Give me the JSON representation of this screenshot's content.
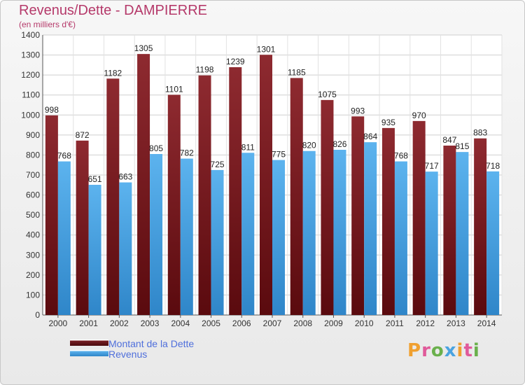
{
  "title": "Revenus/Dette - DAMPIERRE",
  "subtitle": "(en milliers d'€)",
  "colors": {
    "title": "#b5396a",
    "dette": "#7a1f24",
    "revenus": "#4aa3e0",
    "legend_text": "#4f6fdb"
  },
  "legend": [
    {
      "label": "Montant de la Dette",
      "series": "dette"
    },
    {
      "label": "Revenus",
      "series": "revenus"
    }
  ],
  "logo": "Proxiti",
  "chart_data": {
    "type": "bar",
    "categories": [
      "2000",
      "2001",
      "2002",
      "2003",
      "2004",
      "2005",
      "2006",
      "2007",
      "2008",
      "2009",
      "2010",
      "2011",
      "2012",
      "2013",
      "2014"
    ],
    "series": [
      {
        "name": "Montant de la Dette",
        "values": [
          998,
          872,
          1182,
          1305,
          1101,
          1198,
          1239,
          1301,
          1185,
          1075,
          993,
          935,
          970,
          847,
          883
        ]
      },
      {
        "name": "Revenus",
        "values": [
          768,
          651,
          663,
          805,
          782,
          725,
          811,
          775,
          820,
          826,
          864,
          768,
          717,
          815,
          718
        ]
      }
    ],
    "ylim": [
      0,
      1400
    ],
    "yticks": [
      0,
      100,
      200,
      300,
      400,
      500,
      600,
      700,
      800,
      900,
      1000,
      1100,
      1200,
      1300,
      1400
    ],
    "grid": true,
    "legend_position": "bottom-left"
  }
}
